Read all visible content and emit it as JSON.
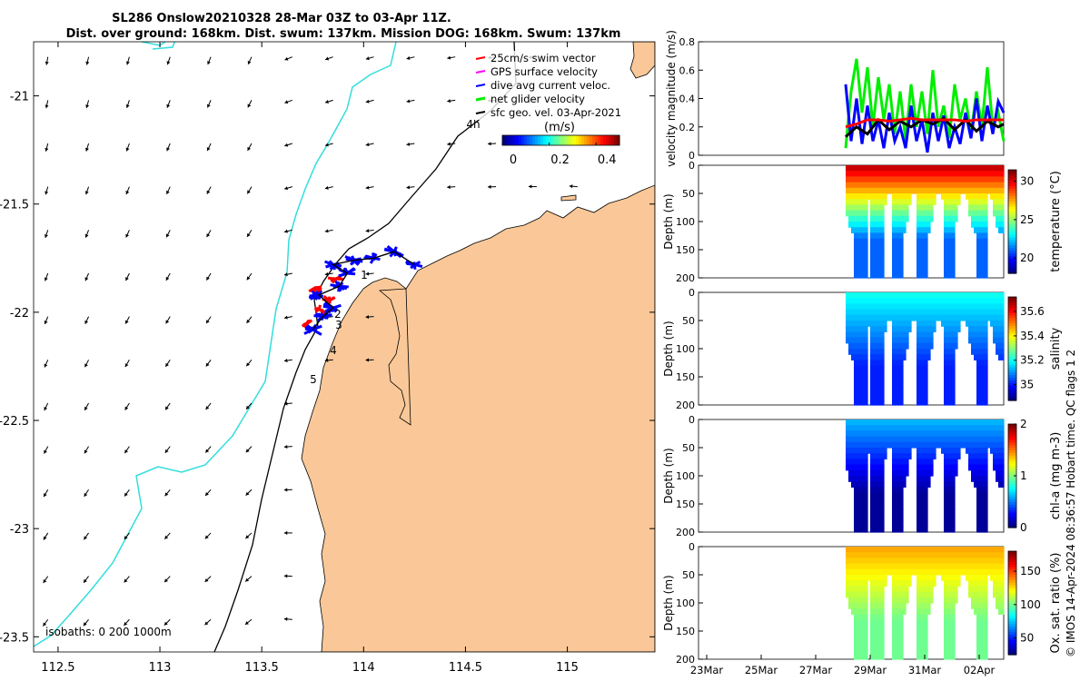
{
  "title": {
    "line1": "SL286 Onslow20210328 28-Mar 03Z to 03-Apr 11Z.",
    "line2": "Dist. over ground: 168km. Dist. swum: 137km. Mission DOG: 168km. Swum: 137km"
  },
  "credit": "© IMOS 14-Apr-2024 08:36:57 Hobart time. QC flags 1  2",
  "colors": {
    "land": "#fac898",
    "coast_line": "#33dddd",
    "isobath": "#000000",
    "swim": "#ff0000",
    "gps": "#ff00ff",
    "dive": "#0000ff",
    "net": "#00ee00",
    "sfc": "#000000"
  },
  "chart_data": [
    {
      "type": "map",
      "x_ticks": [
        "112.5",
        "113",
        "113.5",
        "114",
        "114.5",
        "115"
      ],
      "x_tick_values": [
        112.5,
        113,
        113.5,
        114,
        114.5,
        115
      ],
      "y_ticks": [
        "-21",
        "-21.5",
        "-22",
        "-22.5",
        "-23",
        "-23.5"
      ],
      "y_tick_values": [
        -21,
        -21.5,
        -22,
        -22.5,
        -23,
        -23.5
      ],
      "xlim": [
        112.38,
        115.43
      ],
      "ylim": [
        -23.57,
        -20.75
      ],
      "legend": {
        "placement": "top-right",
        "items": [
          {
            "label": "25cm/s swim vector",
            "color": "#ff0000"
          },
          {
            "label": "GPS surface velocity",
            "color": "#ff00ff"
          },
          {
            "label": "dive avg current veloc.",
            "color": "#0000ff"
          },
          {
            "label": "net glider velocity",
            "color": "#00ee00"
          },
          {
            "label": "sfc geo. vel. 03-Apr-2021",
            "color": "#000000"
          }
        ]
      },
      "colorbar": {
        "label": "(m/s)",
        "ticks": [
          "0",
          "0.2",
          "0.4"
        ],
        "tick_values": [
          0,
          0.2,
          0.4
        ],
        "range": [
          0,
          0.5
        ]
      },
      "time_labels": [
        "4h",
        "1",
        "2",
        "3",
        "4",
        "5"
      ],
      "isobath_label": "isobaths: 0   200  1000m",
      "isobaths": [
        0,
        200,
        1000
      ],
      "arrow_grid": {
        "lon_min": 112.45,
        "lat_max": -20.82,
        "dlon": 0.2,
        "dlat": -0.2,
        "cols": 14,
        "rows": 14
      },
      "track": [
        [
          113.75,
          -22.08
        ],
        [
          113.8,
          -22.02
        ],
        [
          113.85,
          -21.98
        ],
        [
          113.78,
          -21.92
        ],
        [
          113.88,
          -21.88
        ],
        [
          113.92,
          -21.82
        ],
        [
          113.85,
          -21.78
        ],
        [
          113.95,
          -21.76
        ],
        [
          114.05,
          -21.75
        ],
        [
          114.15,
          -21.72
        ],
        [
          114.25,
          -21.78
        ]
      ]
    },
    {
      "type": "line",
      "ylabel": "velocity magnitude (m/s)",
      "ylim": [
        0,
        0.8
      ],
      "yticks": [
        0,
        0.2,
        0.4,
        0.6,
        0.8
      ],
      "xlim": [
        22.7,
        33.9
      ],
      "series": [
        {
          "color": "#00ee00",
          "x": [
            28.1,
            28.3,
            28.5,
            28.7,
            28.9,
            29.1,
            29.3,
            29.5,
            29.7,
            29.9,
            30.1,
            30.3,
            30.5,
            30.7,
            30.9,
            31.1,
            31.3,
            31.5,
            31.7,
            31.9,
            32.1,
            32.3,
            32.5,
            32.7,
            32.9,
            33.1,
            33.3,
            33.5,
            33.7,
            33.9
          ],
          "y": [
            0.05,
            0.45,
            0.68,
            0.3,
            0.62,
            0.2,
            0.55,
            0.25,
            0.5,
            0.15,
            0.45,
            0.1,
            0.5,
            0.2,
            0.45,
            0.15,
            0.6,
            0.2,
            0.35,
            0.12,
            0.5,
            0.25,
            0.4,
            0.15,
            0.45,
            0.2,
            0.62,
            0.2,
            0.3,
            0.1
          ]
        },
        {
          "color": "#0000ff",
          "x": [
            28.1,
            28.3,
            28.5,
            28.7,
            28.9,
            29.1,
            29.3,
            29.5,
            29.7,
            29.9,
            30.1,
            30.3,
            30.5,
            30.7,
            30.9,
            31.1,
            31.3,
            31.5,
            31.7,
            31.9,
            32.1,
            32.3,
            32.5,
            32.7,
            32.9,
            33.1,
            33.3,
            33.5,
            33.7,
            33.9
          ],
          "y": [
            0.5,
            0.1,
            0.4,
            0.08,
            0.35,
            0.1,
            0.25,
            0.05,
            0.3,
            0.1,
            0.2,
            0.05,
            0.35,
            0.1,
            0.25,
            0.02,
            0.3,
            0.1,
            0.28,
            0.05,
            0.2,
            0.08,
            0.3,
            0.12,
            0.4,
            0.1,
            0.35,
            0.15,
            0.38,
            0.3
          ]
        },
        {
          "color": "#000000",
          "x": [
            28.1,
            28.5,
            28.9,
            29.3,
            29.7,
            30.1,
            30.5,
            30.9,
            31.3,
            31.7,
            32.1,
            32.5,
            32.9,
            33.3,
            33.7,
            33.9
          ],
          "y": [
            0.13,
            0.2,
            0.15,
            0.25,
            0.18,
            0.24,
            0.2,
            0.25,
            0.22,
            0.26,
            0.18,
            0.25,
            0.17,
            0.24,
            0.2,
            0.22
          ]
        },
        {
          "color": "#ff0000",
          "x": [
            28.1,
            28.5,
            28.9,
            29.3,
            29.7,
            30.1,
            30.5,
            30.9,
            31.3,
            31.7,
            32.1,
            32.5,
            32.9,
            33.3,
            33.7,
            33.9
          ],
          "y": [
            0.2,
            0.22,
            0.25,
            0.25,
            0.24,
            0.25,
            0.26,
            0.25,
            0.25,
            0.25,
            0.25,
            0.24,
            0.25,
            0.25,
            0.25,
            0.25
          ]
        }
      ]
    },
    {
      "type": "heatmap",
      "ylabel": "Depth (m)",
      "clabel": "temperature (°C)",
      "ylim": [
        0,
        200
      ],
      "yticks": [
        0,
        50,
        100,
        150,
        200
      ],
      "clim": [
        18,
        31.5
      ],
      "cticks": [
        20,
        25,
        30
      ],
      "surface_value": 30.5,
      "deep_value": 21
    },
    {
      "type": "heatmap",
      "ylabel": "Depth (m)",
      "clabel": "salinity",
      "ylim": [
        0,
        200
      ],
      "yticks": [
        0,
        50,
        100,
        150,
        200
      ],
      "clim": [
        34.87,
        35.72
      ],
      "cticks": [
        35,
        35.2,
        35.4,
        35.6
      ],
      "surface_value": 35.2,
      "deep_value": 35.0
    },
    {
      "type": "heatmap",
      "ylabel": "Depth (m)",
      "clabel": "chl-a (mg m-3)",
      "ylim": [
        0,
        200
      ],
      "yticks": [
        0,
        50,
        100,
        150,
        200
      ],
      "clim": [
        0,
        2
      ],
      "cticks": [
        0,
        1,
        2
      ],
      "surface_value": 0.6,
      "deep_value": 0.05
    },
    {
      "type": "heatmap",
      "ylabel": "Depth (m)",
      "clabel": "Ox. sat. ratio (%)",
      "ylim": [
        0,
        200
      ],
      "yticks": [
        0,
        50,
        100,
        150,
        200
      ],
      "clim": [
        25,
        180
      ],
      "cticks": [
        50,
        100,
        150
      ],
      "surface_value": 135,
      "deep_value": 100
    }
  ],
  "time_axis": {
    "ticks": [
      "23Mar",
      "25Mar",
      "27Mar",
      "29Mar",
      "31Mar",
      "02Apr"
    ],
    "tick_values": [
      23,
      25,
      27,
      29,
      31,
      33
    ],
    "xlim": [
      22.7,
      33.9
    ],
    "data_start": 28.1,
    "data_end": 33.9,
    "dives": [
      28.6,
      29.2,
      29.95,
      30.85,
      31.85,
      33.05
    ]
  }
}
